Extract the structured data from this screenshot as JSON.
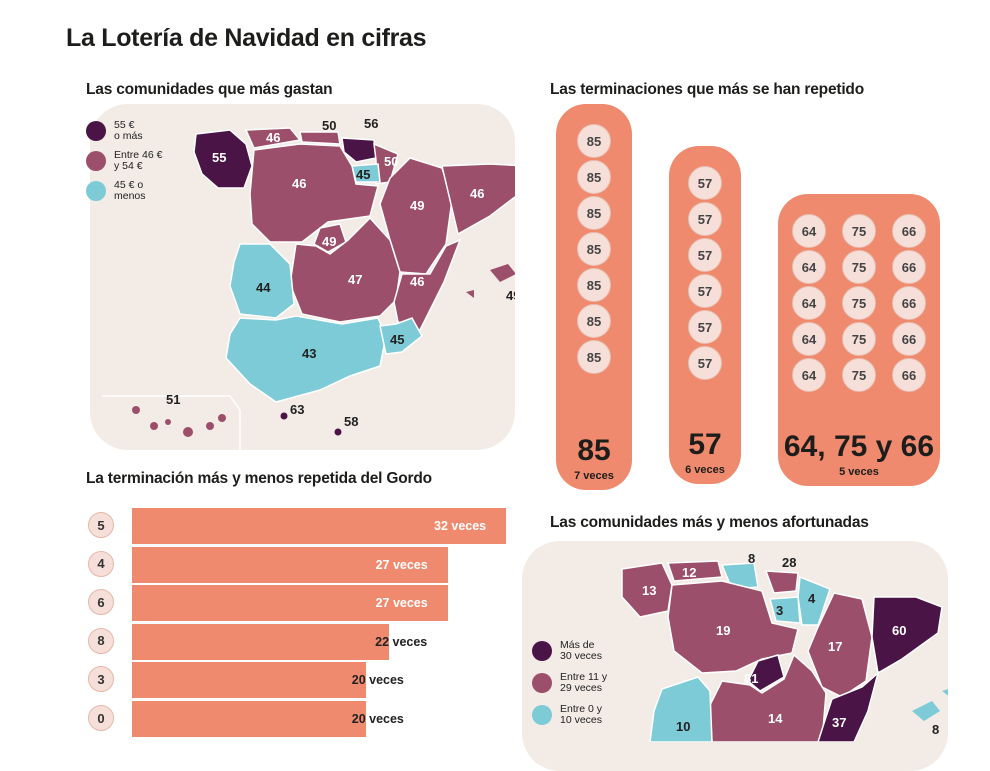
{
  "title": "La Lotería de Navidad en cifras",
  "colors": {
    "dark": "#4a1546",
    "mid": "#9c4f6a",
    "light": "#7dcbd6",
    "bar": "#ef8a6e",
    "panel": "#f2ebe6"
  },
  "spend_map": {
    "title": "Las comunidades que más gastan",
    "legend": [
      {
        "label_1": "55 €",
        "label_2": "o más",
        "color": "#4a1546"
      },
      {
        "label_1": "Entre 46 €",
        "label_2": "y 54 €",
        "color": "#9c4f6a"
      },
      {
        "label_1": "45 € o",
        "label_2": "menos",
        "color": "#7dcbd6"
      }
    ],
    "values": [
      "55",
      "46",
      "50",
      "56",
      "50",
      "45",
      "46",
      "49",
      "46",
      "49",
      "47",
      "44",
      "46",
      "49",
      "43",
      "45",
      "51",
      "63",
      "58"
    ]
  },
  "endings": {
    "title": "Las terminaciones que más se han repetido",
    "groups": [
      {
        "balls": [
          [
            "85"
          ],
          [
            "85"
          ],
          [
            "85"
          ],
          [
            "85"
          ],
          [
            "85"
          ],
          [
            "85"
          ],
          [
            "85"
          ]
        ],
        "big": "85",
        "times": "7 veces"
      },
      {
        "balls": [
          [
            "57"
          ],
          [
            "57"
          ],
          [
            "57"
          ],
          [
            "57"
          ],
          [
            "57"
          ],
          [
            "57"
          ]
        ],
        "big": "57",
        "times": "6 veces"
      },
      {
        "balls": [
          [
            "64",
            "75",
            "66"
          ],
          [
            "64",
            "75",
            "66"
          ],
          [
            "64",
            "75",
            "66"
          ],
          [
            "64",
            "75",
            "66"
          ],
          [
            "64",
            "75",
            "66"
          ]
        ],
        "big": "64, 75 y 66",
        "times": "5 veces"
      }
    ]
  },
  "chart_data": {
    "type": "bar",
    "title": "La terminación más y menos repetida del Gordo",
    "orientation": "horizontal",
    "categories": [
      "5",
      "4",
      "6",
      "8",
      "3",
      "0"
    ],
    "values": [
      32,
      27,
      27,
      22,
      20,
      20
    ],
    "data_labels": [
      "32 veces",
      "27 veces",
      "27 veces",
      "22 veces",
      "20 veces",
      "20 veces"
    ],
    "xlim": [
      0,
      32
    ],
    "grid": false
  },
  "luck_map": {
    "title": "Las comunidades más y menos afortunadas",
    "legend": [
      {
        "label_1": "Más de",
        "label_2": "30 veces",
        "color": "#4a1546"
      },
      {
        "label_1": "Entre 11 y",
        "label_2": "29 veces",
        "color": "#9c4f6a"
      },
      {
        "label_1": "Entre 0 y",
        "label_2": "10 veces",
        "color": "#7dcbd6"
      }
    ],
    "values": [
      "8",
      "28",
      "13",
      "12",
      "3",
      "4",
      "19",
      "17",
      "60",
      "81",
      "14",
      "37",
      "10",
      "8"
    ]
  }
}
